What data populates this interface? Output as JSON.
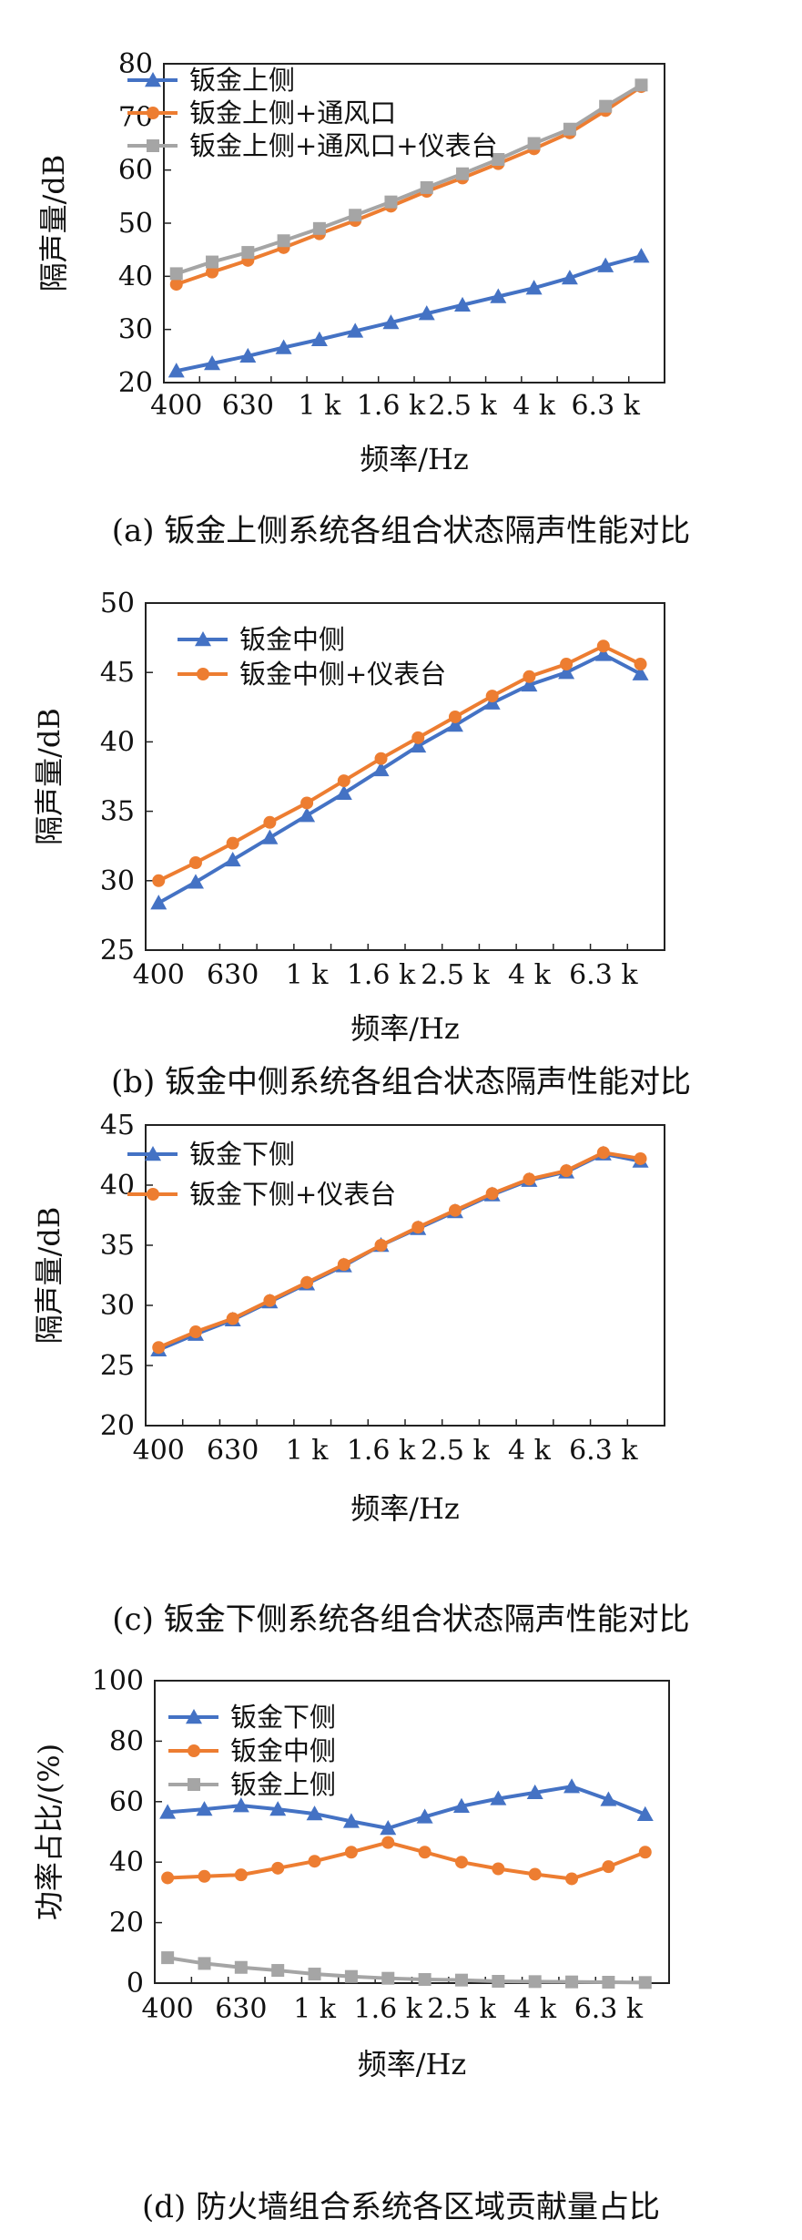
{
  "chart_data": [
    {
      "type": "line",
      "xlabel": "频率/Hz",
      "ylabel": "隔声量/dB",
      "ylim": [
        20,
        80
      ],
      "yticks": [
        20,
        30,
        40,
        50,
        60,
        70,
        80
      ],
      "xtick_labels": [
        "400",
        "630",
        "1 k",
        "1.6 k",
        "2.5 k",
        "4 k",
        "6.3 k"
      ],
      "x": [
        "400",
        "500",
        "630",
        "800",
        "1 k",
        "1.25 k",
        "1.6 k",
        "2 k",
        "2.5 k",
        "3.15 k",
        "4 k",
        "5 k",
        "6.3 k",
        "8 k"
      ],
      "legend": "top-left",
      "grid": false,
      "series": [
        {
          "name": "钣金上侧",
          "color": "#4472C4",
          "marker": "triangle",
          "values": [
            22.2,
            23.6,
            25.0,
            26.6,
            28.1,
            29.7,
            31.3,
            33.0,
            34.6,
            36.2,
            37.8,
            39.7,
            42.0,
            43.8
          ]
        },
        {
          "name": "钣金上侧+通风口",
          "color": "#ED7D31",
          "marker": "circle",
          "values": [
            38.5,
            40.8,
            43.0,
            45.4,
            48.0,
            50.5,
            53.2,
            56.0,
            58.5,
            61.2,
            64.0,
            67.0,
            71.2,
            75.7
          ]
        },
        {
          "name": "钣金上侧+通风口+仪表台",
          "color": "#A5A5A5",
          "marker": "square",
          "values": [
            40.5,
            42.7,
            44.5,
            46.7,
            49.0,
            51.5,
            54.0,
            56.7,
            59.3,
            62.0,
            65.0,
            67.7,
            72.0,
            76.0
          ]
        }
      ],
      "caption": "(a) 钣金上侧系统各组合状态隔声性能对比"
    },
    {
      "type": "line",
      "xlabel": "频率/Hz",
      "ylabel": "隔声量/dB",
      "ylim": [
        25,
        50
      ],
      "yticks": [
        25,
        30,
        35,
        40,
        45,
        50
      ],
      "xtick_labels": [
        "400",
        "630",
        "1 k",
        "1.6 k",
        "2.5 k",
        "4 k",
        "6.3 k"
      ],
      "x": [
        "400",
        "500",
        "630",
        "800",
        "1 k",
        "1.25 k",
        "1.6 k",
        "2 k",
        "2.5 k",
        "3.15 k",
        "4 k",
        "5 k",
        "6.3 k",
        "8 k"
      ],
      "legend": "top-left",
      "grid": false,
      "series": [
        {
          "name": "钣金中侧",
          "color": "#4472C4",
          "marker": "triangle",
          "values": [
            28.4,
            29.9,
            31.5,
            33.1,
            34.7,
            36.3,
            38.0,
            39.7,
            41.2,
            42.8,
            44.1,
            45.0,
            46.3,
            44.9
          ]
        },
        {
          "name": "钣金中侧+仪表台",
          "color": "#ED7D31",
          "marker": "circle",
          "values": [
            30.0,
            31.3,
            32.7,
            34.2,
            35.6,
            37.2,
            38.8,
            40.3,
            41.8,
            43.3,
            44.7,
            45.6,
            46.9,
            45.6
          ]
        }
      ],
      "caption": "(b) 钣金中侧系统各组合状态隔声性能对比"
    },
    {
      "type": "line",
      "xlabel": "频率/Hz",
      "ylabel": "隔声量/dB",
      "ylim": [
        20,
        45
      ],
      "yticks": [
        20,
        25,
        30,
        35,
        40,
        45
      ],
      "xtick_labels": [
        "400",
        "630",
        "1 k",
        "1.6 k",
        "2.5 k",
        "4 k",
        "6.3 k"
      ],
      "x": [
        "400",
        "500",
        "630",
        "800",
        "1 k",
        "1.25 k",
        "1.6 k",
        "2 k",
        "2.5 k",
        "3.15 k",
        "4 k",
        "5 k",
        "6.3 k",
        "8 k"
      ],
      "legend": "top-left",
      "grid": false,
      "series": [
        {
          "name": "钣金下侧",
          "color": "#4472C4",
          "marker": "triangle",
          "values": [
            26.3,
            27.6,
            28.8,
            30.3,
            31.8,
            33.3,
            35.0,
            36.4,
            37.8,
            39.2,
            40.4,
            41.1,
            42.6,
            42.0
          ]
        },
        {
          "name": "钣金下侧+仪表台",
          "color": "#ED7D31",
          "marker": "circle",
          "values": [
            26.5,
            27.8,
            28.9,
            30.4,
            31.9,
            33.4,
            35.0,
            36.5,
            37.9,
            39.3,
            40.5,
            41.2,
            42.7,
            42.2
          ]
        }
      ],
      "caption": "(c) 钣金下侧系统各组合状态隔声性能对比"
    },
    {
      "type": "line",
      "xlabel": "频率/Hz",
      "ylabel": "功率占比/(%)",
      "ylim": [
        0,
        100
      ],
      "yticks": [
        0,
        20,
        40,
        60,
        80,
        100
      ],
      "xtick_labels": [
        "400",
        "630",
        "1 k",
        "1.6 k",
        "2.5 k",
        "4 k",
        "6.3 k"
      ],
      "x": [
        "400",
        "500",
        "630",
        "800",
        "1 k",
        "1.25 k",
        "1.6 k",
        "2 k",
        "2.5 k",
        "3.15 k",
        "4 k",
        "5 k",
        "6.3 k",
        "8 k"
      ],
      "legend": "top-left",
      "grid": false,
      "series": [
        {
          "name": "钣金下侧",
          "color": "#4472C4",
          "marker": "triangle",
          "values": [
            56.5,
            57.5,
            58.7,
            57.5,
            56.0,
            53.5,
            51.2,
            55.0,
            58.5,
            61.0,
            63.0,
            65.0,
            60.7,
            55.8
          ]
        },
        {
          "name": "钣金中侧",
          "color": "#ED7D31",
          "marker": "circle",
          "values": [
            34.8,
            35.3,
            35.8,
            38.0,
            40.3,
            43.3,
            46.5,
            43.3,
            40.0,
            37.8,
            36.0,
            34.5,
            38.5,
            43.3
          ]
        },
        {
          "name": "钣金上侧",
          "color": "#A5A5A5",
          "marker": "square",
          "values": [
            8.4,
            6.5,
            5.2,
            4.2,
            3.0,
            2.2,
            1.6,
            1.2,
            1.0,
            0.6,
            0.5,
            0.4,
            0.3,
            0.2
          ]
        }
      ],
      "caption": "(d) 防火墙组合系统各区域贡献量占比"
    }
  ]
}
